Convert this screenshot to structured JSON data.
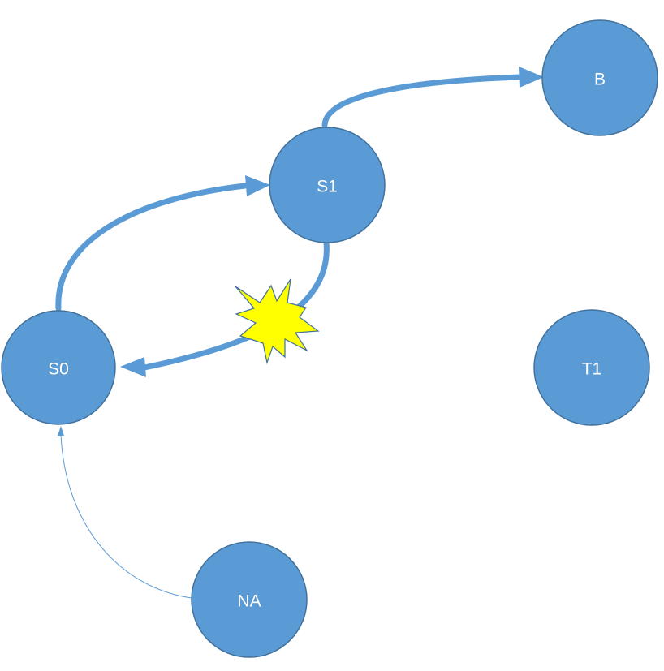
{
  "nodes": {
    "S0": {
      "label": "S0"
    },
    "S1": {
      "label": "S1"
    },
    "B": {
      "label": "B"
    },
    "T1": {
      "label": "T1"
    },
    "NA": {
      "label": "NA"
    }
  },
  "edges": [
    {
      "from": "S0",
      "to": "S1",
      "style": "thick"
    },
    {
      "from": "S1",
      "to": "S0",
      "style": "thick",
      "marker": "explosion"
    },
    {
      "from": "S1",
      "to": "B",
      "style": "thick"
    },
    {
      "from": "NA",
      "to": "S0",
      "style": "thin"
    }
  ],
  "colors": {
    "node_fill": "#5b9bd5",
    "node_stroke": "#41719c",
    "label": "#ffffff",
    "edge": "#5b9bd5",
    "explosion": "#ffff00"
  }
}
